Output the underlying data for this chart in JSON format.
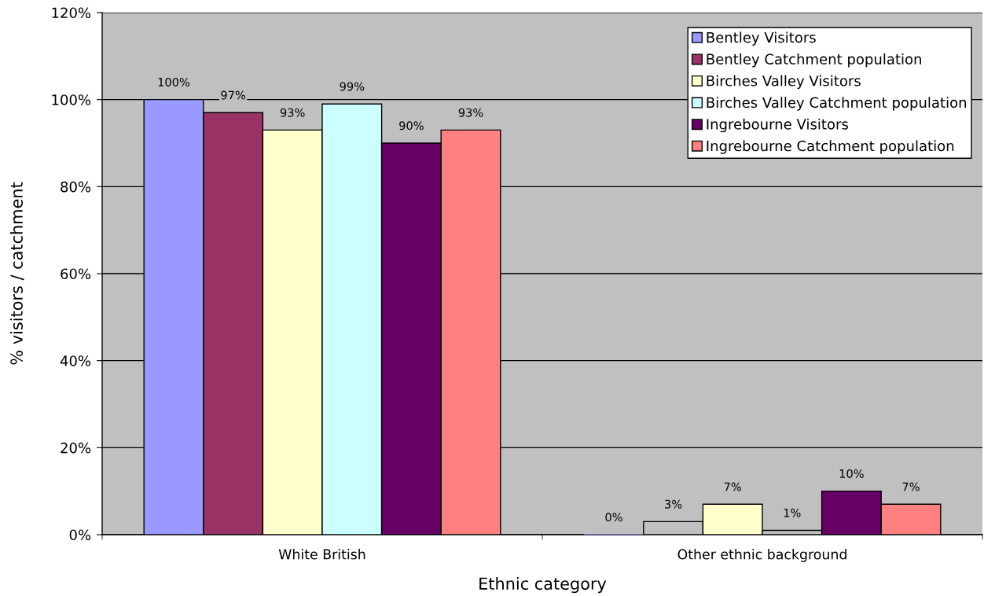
{
  "chart_data": {
    "type": "bar",
    "xlabel": "Ethnic category",
    "ylabel": "% visitors / catchment",
    "categories": [
      "White British",
      "Other ethnic background"
    ],
    "series": [
      {
        "name": "Bentley Visitors",
        "color": "#9999ff",
        "values": [
          100,
          0
        ],
        "value_labels": [
          "100%",
          "0%"
        ]
      },
      {
        "name": "Bentley Catchment population",
        "color": "#993366",
        "colors": [
          "#993366",
          "#c0c0c0"
        ],
        "values": [
          97,
          3
        ],
        "value_labels": [
          "97%",
          "3%"
        ]
      },
      {
        "name": "Birches Valley Visitors",
        "color": "#ffffcc",
        "values": [
          93,
          7
        ],
        "value_labels": [
          "93%",
          "7%"
        ]
      },
      {
        "name": "Birches Valley Catchment population",
        "color": "#ccffff",
        "colors": [
          "#ccffff",
          "#c0c0c0"
        ],
        "values": [
          99,
          1
        ],
        "value_labels": [
          "99%",
          "1%"
        ]
      },
      {
        "name": "Ingrebourne Visitors",
        "color": "#660066",
        "values": [
          90,
          10
        ],
        "value_labels": [
          "90%",
          "10%"
        ]
      },
      {
        "name": "Ingrebourne Catchment population",
        "color": "#ff8080",
        "values": [
          93,
          7
        ],
        "value_labels": [
          "93%",
          "7%"
        ]
      }
    ],
    "ylim": [
      0,
      120
    ],
    "yticks": [
      {
        "value": 0,
        "label": "0%"
      },
      {
        "value": 20,
        "label": "20%"
      },
      {
        "value": 40,
        "label": "40%"
      },
      {
        "value": 60,
        "label": "60%"
      },
      {
        "value": 80,
        "label": "80%"
      },
      {
        "value": 100,
        "label": "100%"
      },
      {
        "value": 120,
        "label": "120%"
      }
    ],
    "grid": "y",
    "legend": "top right"
  }
}
